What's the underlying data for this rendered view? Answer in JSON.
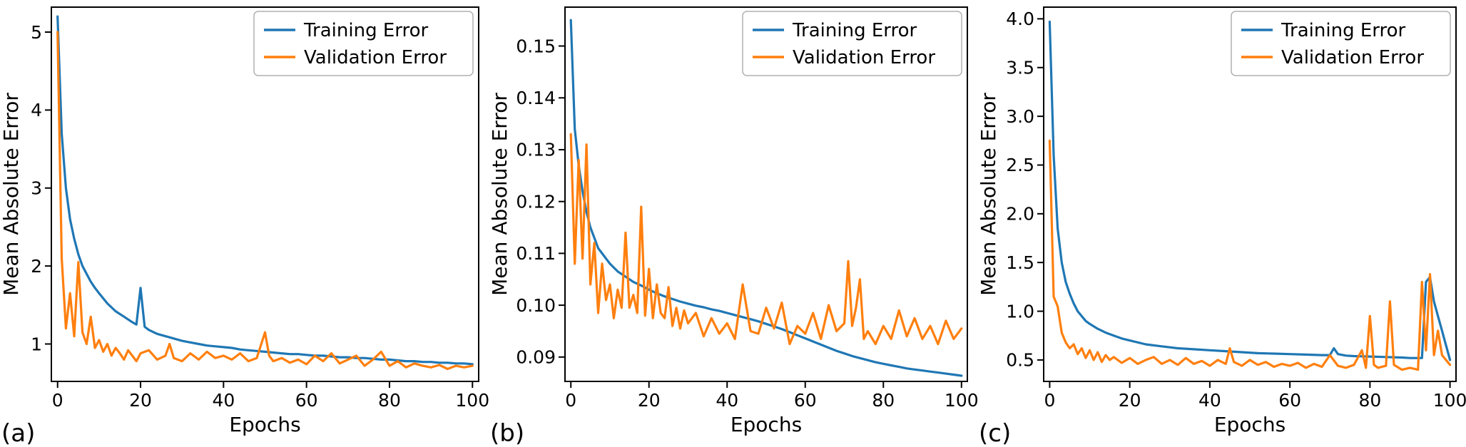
{
  "figure": {
    "background": "#ffffff",
    "panel_count": 3
  },
  "colors": {
    "training": "#1f77b4",
    "validation": "#ff7f0e",
    "axis": "#000000",
    "legend_border": "#b0b0b0",
    "legend_bg": "#ffffff"
  },
  "chart_data": [
    {
      "type": "line",
      "panel_label": "(a)",
      "title": "",
      "xlabel": "Epochs",
      "ylabel": "Mean Absolute Error",
      "xlim": [
        -1.5,
        101.5
      ],
      "ylim": [
        0.52,
        5.32
      ],
      "grid": false,
      "legend": {
        "loc": "upper right",
        "entries": [
          "Training Error",
          "Validation Error"
        ]
      },
      "xticks": [
        0,
        20,
        40,
        60,
        80,
        100
      ],
      "xtick_labels": [
        "0",
        "20",
        "40",
        "60",
        "80",
        "100"
      ],
      "yticks": [
        1,
        2,
        3,
        4,
        5
      ],
      "ytick_labels": [
        "1",
        "2",
        "3",
        "4",
        "5"
      ],
      "series": [
        {
          "name": "Training Error",
          "color_key": "training",
          "x": [
            0,
            1,
            2,
            3,
            4,
            5,
            6,
            7,
            8,
            9,
            10,
            12,
            14,
            16,
            18,
            19,
            20,
            21,
            22,
            24,
            26,
            28,
            30,
            32,
            34,
            36,
            38,
            40,
            42,
            44,
            46,
            48,
            50,
            52,
            54,
            56,
            58,
            60,
            62,
            64,
            66,
            68,
            70,
            72,
            74,
            76,
            78,
            80,
            82,
            84,
            86,
            88,
            90,
            92,
            94,
            96,
            98,
            100
          ],
          "y": [
            5.2,
            3.7,
            3.0,
            2.6,
            2.35,
            2.15,
            2.0,
            1.9,
            1.8,
            1.72,
            1.65,
            1.52,
            1.42,
            1.35,
            1.28,
            1.25,
            1.72,
            1.22,
            1.18,
            1.13,
            1.1,
            1.07,
            1.04,
            1.02,
            1.0,
            0.98,
            0.97,
            0.96,
            0.95,
            0.93,
            0.92,
            0.91,
            0.9,
            0.89,
            0.88,
            0.87,
            0.87,
            0.86,
            0.85,
            0.85,
            0.84,
            0.83,
            0.83,
            0.82,
            0.82,
            0.81,
            0.8,
            0.8,
            0.79,
            0.78,
            0.78,
            0.77,
            0.77,
            0.76,
            0.76,
            0.75,
            0.75,
            0.74
          ]
        },
        {
          "name": "Validation Error",
          "color_key": "validation",
          "x": [
            0,
            1,
            2,
            3,
            4,
            5,
            6,
            7,
            8,
            9,
            10,
            11,
            12,
            13,
            14,
            15,
            16,
            17,
            18,
            19,
            20,
            22,
            24,
            26,
            27,
            28,
            30,
            32,
            34,
            36,
            38,
            40,
            42,
            44,
            46,
            48,
            50,
            51,
            52,
            54,
            56,
            58,
            60,
            62,
            64,
            66,
            68,
            70,
            72,
            74,
            76,
            78,
            80,
            82,
            84,
            86,
            88,
            90,
            92,
            94,
            96,
            98,
            100
          ],
          "y": [
            5.0,
            2.1,
            1.2,
            1.65,
            1.1,
            2.05,
            1.15,
            1.0,
            1.35,
            0.95,
            1.05,
            0.9,
            1.0,
            0.85,
            0.95,
            0.88,
            0.8,
            0.92,
            0.85,
            0.78,
            0.88,
            0.92,
            0.8,
            0.85,
            1.0,
            0.82,
            0.78,
            0.88,
            0.8,
            0.9,
            0.82,
            0.85,
            0.8,
            0.88,
            0.78,
            0.82,
            1.15,
            0.85,
            0.78,
            0.82,
            0.76,
            0.8,
            0.74,
            0.85,
            0.78,
            0.88,
            0.75,
            0.8,
            0.85,
            0.72,
            0.8,
            0.9,
            0.72,
            0.78,
            0.7,
            0.75,
            0.72,
            0.7,
            0.73,
            0.68,
            0.72,
            0.7,
            0.72
          ]
        }
      ]
    },
    {
      "type": "line",
      "panel_label": "(b)",
      "title": "",
      "xlabel": "Epochs",
      "ylabel": "Mean Absolute Error",
      "xlim": [
        -1.5,
        101.5
      ],
      "ylim": [
        0.0853,
        0.1575
      ],
      "grid": false,
      "legend": {
        "loc": "upper right",
        "entries": [
          "Training Error",
          "Validation Error"
        ]
      },
      "xticks": [
        0,
        20,
        40,
        60,
        80,
        100
      ],
      "xtick_labels": [
        "0",
        "20",
        "40",
        "60",
        "80",
        "100"
      ],
      "yticks": [
        0.09,
        0.1,
        0.11,
        0.12,
        0.13,
        0.14,
        0.15
      ],
      "ytick_labels": [
        "0.09",
        "0.10",
        "0.11",
        "0.12",
        "0.13",
        "0.14",
        "0.15"
      ],
      "series": [
        {
          "name": "Training Error",
          "color_key": "training",
          "x": [
            0,
            1,
            2,
            3,
            4,
            5,
            6,
            7,
            8,
            9,
            10,
            12,
            14,
            16,
            18,
            20,
            22,
            24,
            26,
            28,
            30,
            32,
            34,
            36,
            38,
            40,
            42,
            44,
            46,
            48,
            50,
            52,
            54,
            56,
            58,
            60,
            62,
            64,
            66,
            68,
            70,
            72,
            74,
            76,
            78,
            80,
            82,
            84,
            86,
            88,
            90,
            92,
            94,
            96,
            98,
            100
          ],
          "y": [
            0.155,
            0.134,
            0.127,
            0.122,
            0.118,
            0.115,
            0.113,
            0.111,
            0.11,
            0.109,
            0.108,
            0.1065,
            0.1055,
            0.1045,
            0.1038,
            0.103,
            0.1023,
            0.1017,
            0.1012,
            0.1007,
            0.1003,
            0.0999,
            0.0996,
            0.0992,
            0.0989,
            0.0985,
            0.0981,
            0.0977,
            0.0973,
            0.0969,
            0.0964,
            0.0959,
            0.0954,
            0.0948,
            0.0942,
            0.0936,
            0.093,
            0.0924,
            0.0918,
            0.0912,
            0.0907,
            0.0902,
            0.0898,
            0.0894,
            0.089,
            0.0887,
            0.0884,
            0.0881,
            0.0878,
            0.0876,
            0.0874,
            0.0872,
            0.087,
            0.0868,
            0.0866,
            0.0864
          ]
        },
        {
          "name": "Validation Error",
          "color_key": "validation",
          "x": [
            0,
            1,
            2,
            3,
            4,
            5,
            6,
            7,
            8,
            9,
            10,
            11,
            12,
            13,
            14,
            15,
            16,
            17,
            18,
            19,
            20,
            21,
            22,
            23,
            24,
            25,
            26,
            27,
            28,
            29,
            30,
            32,
            34,
            36,
            38,
            40,
            42,
            44,
            46,
            48,
            50,
            52,
            54,
            56,
            58,
            60,
            62,
            64,
            66,
            68,
            70,
            71,
            72,
            73,
            74,
            75,
            76,
            78,
            80,
            82,
            84,
            86,
            88,
            90,
            92,
            94,
            96,
            98,
            100
          ],
          "y": [
            0.133,
            0.108,
            0.128,
            0.109,
            0.131,
            0.104,
            0.112,
            0.0985,
            0.108,
            0.101,
            0.104,
            0.0975,
            0.103,
            0.0995,
            0.114,
            0.0995,
            0.102,
            0.0985,
            0.119,
            0.098,
            0.107,
            0.0975,
            0.104,
            0.0985,
            0.0975,
            0.1035,
            0.096,
            0.0995,
            0.0955,
            0.099,
            0.0965,
            0.0985,
            0.094,
            0.0975,
            0.0945,
            0.0965,
            0.0935,
            0.104,
            0.095,
            0.0945,
            0.0995,
            0.0955,
            0.1005,
            0.0925,
            0.096,
            0.0945,
            0.0985,
            0.0935,
            0.1,
            0.095,
            0.0965,
            0.1085,
            0.096,
            0.0995,
            0.105,
            0.0935,
            0.095,
            0.0925,
            0.096,
            0.0935,
            0.099,
            0.094,
            0.0975,
            0.0935,
            0.096,
            0.0925,
            0.097,
            0.0935,
            0.0955
          ]
        }
      ]
    },
    {
      "type": "line",
      "panel_label": "(c)",
      "title": "",
      "xlabel": "Epochs",
      "ylabel": "Mean Absolute Error",
      "xlim": [
        -1.5,
        101.5
      ],
      "ylim": [
        0.28,
        4.12
      ],
      "grid": false,
      "legend": {
        "loc": "upper right",
        "entries": [
          "Training Error",
          "Validation Error"
        ]
      },
      "xticks": [
        0,
        20,
        40,
        60,
        80,
        100
      ],
      "xtick_labels": [
        "0",
        "20",
        "40",
        "60",
        "80",
        "100"
      ],
      "yticks": [
        0.5,
        1.0,
        1.5,
        2.0,
        2.5,
        3.0,
        3.5,
        4.0
      ],
      "ytick_labels": [
        "0.5",
        "1.0",
        "1.5",
        "2.0",
        "2.5",
        "3.0",
        "3.5",
        "4.0"
      ],
      "series": [
        {
          "name": "Training Error",
          "color_key": "training",
          "x": [
            0,
            1,
            2,
            3,
            4,
            5,
            6,
            7,
            8,
            9,
            10,
            12,
            14,
            16,
            18,
            20,
            24,
            28,
            32,
            36,
            40,
            44,
            48,
            52,
            56,
            60,
            64,
            68,
            70,
            71,
            72,
            74,
            76,
            80,
            84,
            88,
            90,
            92,
            93,
            94,
            95,
            96,
            97,
            98,
            100
          ],
          "y": [
            3.97,
            2.6,
            1.85,
            1.5,
            1.3,
            1.18,
            1.08,
            1.0,
            0.95,
            0.9,
            0.87,
            0.82,
            0.78,
            0.75,
            0.72,
            0.7,
            0.66,
            0.64,
            0.62,
            0.61,
            0.6,
            0.59,
            0.58,
            0.57,
            0.565,
            0.56,
            0.555,
            0.55,
            0.55,
            0.62,
            0.56,
            0.545,
            0.54,
            0.535,
            0.53,
            0.525,
            0.52,
            0.52,
            0.52,
            1.3,
            1.35,
            1.1,
            0.95,
            0.8,
            0.5
          ]
        },
        {
          "name": "Validation Error",
          "color_key": "validation",
          "x": [
            0,
            1,
            2,
            3,
            4,
            5,
            6,
            7,
            8,
            9,
            10,
            11,
            12,
            13,
            14,
            15,
            16,
            18,
            20,
            22,
            24,
            26,
            28,
            30,
            32,
            34,
            36,
            38,
            40,
            42,
            44,
            45,
            46,
            48,
            50,
            52,
            54,
            56,
            58,
            60,
            62,
            64,
            66,
            68,
            70,
            72,
            74,
            76,
            78,
            79,
            80,
            81,
            82,
            84,
            85,
            86,
            88,
            90,
            92,
            93,
            94,
            95,
            96,
            97,
            98,
            100
          ],
          "y": [
            2.75,
            1.15,
            1.05,
            0.78,
            0.68,
            0.62,
            0.66,
            0.56,
            0.62,
            0.52,
            0.6,
            0.5,
            0.58,
            0.48,
            0.55,
            0.5,
            0.53,
            0.47,
            0.52,
            0.46,
            0.5,
            0.53,
            0.46,
            0.5,
            0.45,
            0.52,
            0.46,
            0.49,
            0.44,
            0.5,
            0.46,
            0.62,
            0.48,
            0.44,
            0.5,
            0.45,
            0.48,
            0.43,
            0.46,
            0.44,
            0.47,
            0.42,
            0.46,
            0.43,
            0.55,
            0.44,
            0.42,
            0.45,
            0.6,
            0.42,
            0.95,
            0.45,
            0.42,
            0.44,
            1.1,
            0.45,
            0.4,
            0.42,
            0.4,
            1.3,
            0.6,
            1.38,
            0.55,
            0.8,
            0.55,
            0.45
          ]
        }
      ]
    }
  ]
}
